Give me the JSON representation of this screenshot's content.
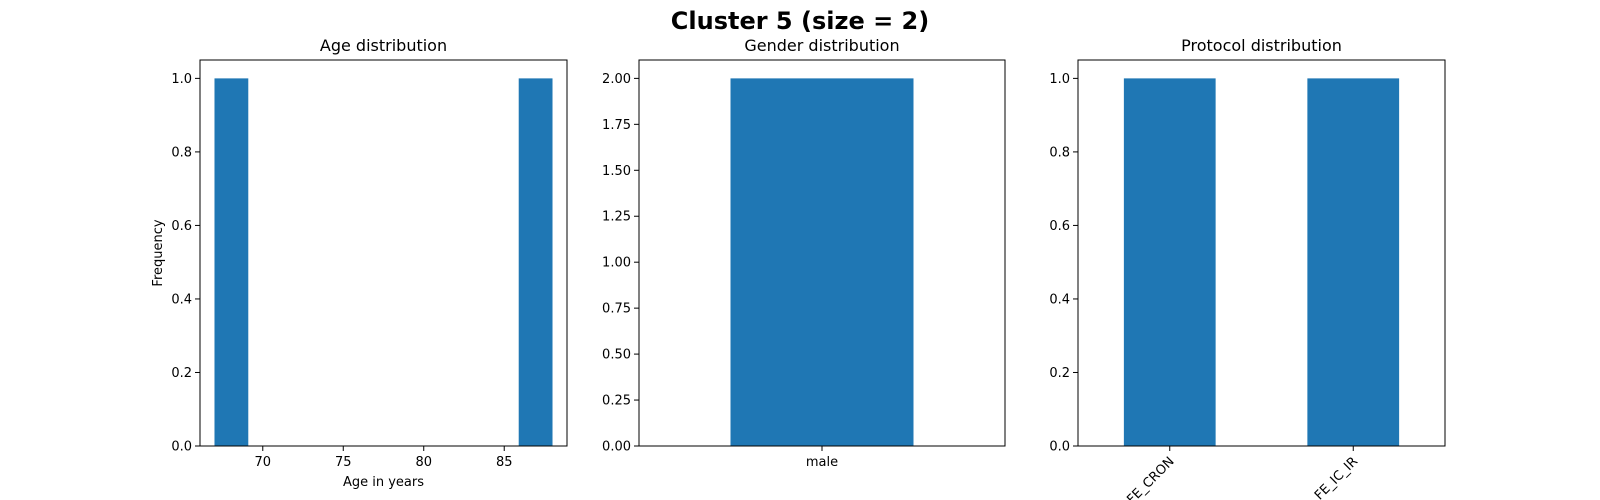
{
  "figure_title": "Cluster 5 (size = 2)",
  "colors": {
    "bar": "#1f77b4",
    "axis": "#000000",
    "background": "#ffffff"
  },
  "chart_data": [
    {
      "type": "bar",
      "title": "Age distribution",
      "xlabel": "Age in years",
      "ylabel": "Frequency",
      "xlim": [
        66.1,
        88.9
      ],
      "ylim": [
        0,
        1.05
      ],
      "xticks": [
        70,
        75,
        80,
        85
      ],
      "yticks": [
        "0.0",
        "0.2",
        "0.4",
        "0.6",
        "0.8",
        "1.0"
      ],
      "bins": [
        {
          "start": 67,
          "end": 69.1,
          "value": 1
        },
        {
          "start": 85.9,
          "end": 88,
          "value": 1
        }
      ],
      "grid": false
    },
    {
      "type": "bar",
      "title": "Gender distribution",
      "xlabel": "",
      "ylabel": "",
      "categories": [
        "male"
      ],
      "values": [
        2
      ],
      "ylim": [
        0,
        2.1
      ],
      "yticks": [
        "0.00",
        "0.25",
        "0.50",
        "0.75",
        "1.00",
        "1.25",
        "1.50",
        "1.75",
        "2.00"
      ],
      "xtick_rotation": 0,
      "grid": false
    },
    {
      "type": "bar",
      "title": "Protocol distribution",
      "xlabel": "",
      "ylabel": "",
      "categories": [
        "FE_CRON",
        "FE_IC_IR"
      ],
      "values": [
        1,
        1
      ],
      "ylim": [
        0,
        1.05
      ],
      "yticks": [
        "0.0",
        "0.2",
        "0.4",
        "0.6",
        "0.8",
        "1.0"
      ],
      "xtick_rotation": 45,
      "grid": false
    }
  ]
}
